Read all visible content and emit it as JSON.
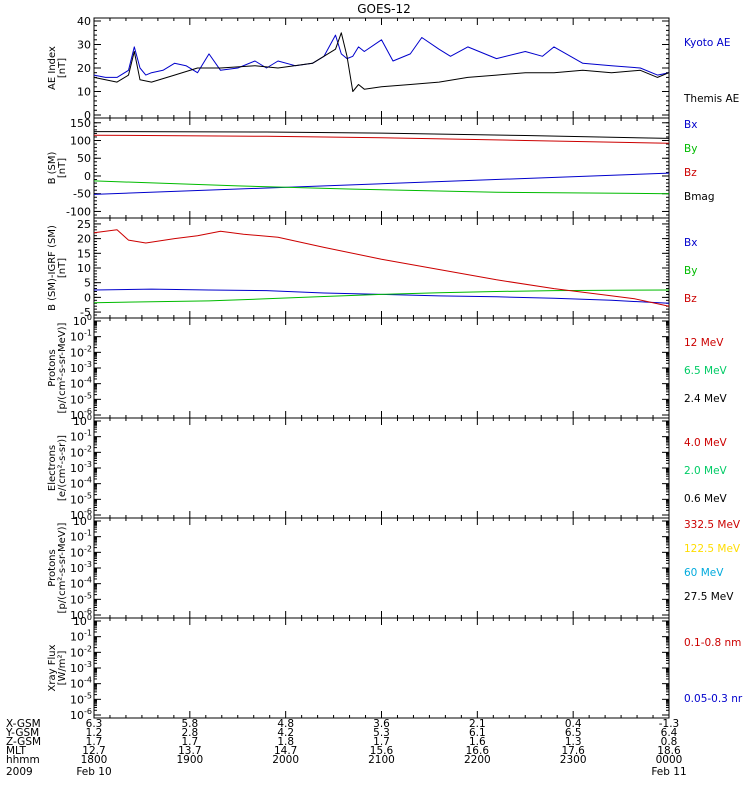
{
  "title": "GOES-12",
  "chart_data": [
    {
      "type": "line",
      "panel": 1,
      "ylabel_lines": [
        "AE Index",
        "[nT]"
      ],
      "ylim": [
        0,
        40
      ],
      "yticks": [
        0,
        10,
        20,
        30,
        40
      ],
      "scale": "linear",
      "series": [
        {
          "name": "Kyoto AE",
          "color": "#0000cc",
          "label_pos": 0,
          "x": [
            0,
            0.02,
            0.04,
            0.06,
            0.07,
            0.08,
            0.09,
            0.1,
            0.12,
            0.14,
            0.16,
            0.18,
            0.2,
            0.22,
            0.25,
            0.28,
            0.3,
            0.32,
            0.35,
            0.38,
            0.4,
            0.42,
            0.43,
            0.44,
            0.45,
            0.46,
            0.47,
            0.5,
            0.52,
            0.55,
            0.57,
            0.6,
            0.62,
            0.65,
            0.7,
            0.75,
            0.78,
            0.8,
            0.85,
            0.9,
            0.95,
            0.98,
            1.0
          ],
          "y": [
            17,
            16,
            16,
            19,
            29,
            20,
            17,
            18,
            19,
            22,
            21,
            18,
            26,
            19,
            20,
            23,
            20,
            23,
            21,
            22,
            25,
            34,
            26,
            24,
            25,
            29,
            27,
            32,
            23,
            26,
            33,
            28,
            25,
            29,
            24,
            27,
            25,
            29,
            22,
            21,
            20,
            17,
            18
          ]
        },
        {
          "name": "Themis AE",
          "color": "#000000",
          "label_pos": 2,
          "x": [
            0,
            0.02,
            0.04,
            0.06,
            0.07,
            0.08,
            0.1,
            0.14,
            0.18,
            0.22,
            0.28,
            0.32,
            0.38,
            0.42,
            0.43,
            0.44,
            0.45,
            0.46,
            0.47,
            0.5,
            0.55,
            0.6,
            0.65,
            0.7,
            0.75,
            0.8,
            0.85,
            0.9,
            0.95,
            0.98,
            1.0
          ],
          "y": [
            16,
            15,
            14,
            17,
            27,
            15,
            14,
            17,
            20,
            20,
            21,
            20,
            22,
            28,
            35,
            25,
            10,
            13,
            11,
            12,
            13,
            14,
            16,
            17,
            18,
            18,
            19,
            18,
            19,
            16,
            18
          ]
        }
      ]
    },
    {
      "type": "line",
      "panel": 2,
      "ylabel_lines": [
        "B (SM)",
        "[nT]"
      ],
      "ylim": [
        -110,
        155
      ],
      "yticks": [
        -100,
        -50,
        0,
        50,
        100,
        150
      ],
      "scale": "linear",
      "series": [
        {
          "name": "Bx",
          "color": "#0000cc",
          "label_pos": 0,
          "x": [
            0,
            1.0
          ],
          "y": [
            -52,
            8
          ]
        },
        {
          "name": "By",
          "color": "#00bb00",
          "label_pos": 1,
          "x": [
            0,
            0.25,
            0.45,
            0.7,
            1.0
          ],
          "y": [
            -14,
            -28,
            -37,
            -46,
            -50
          ]
        },
        {
          "name": "Bz",
          "color": "#cc0000",
          "label_pos": 2,
          "x": [
            0,
            0.3,
            0.5,
            0.75,
            1.0
          ],
          "y": [
            115,
            112,
            108,
            100,
            92
          ]
        },
        {
          "name": "Bmag",
          "color": "#000000",
          "label_pos": 3,
          "x": [
            0,
            0.3,
            0.5,
            0.75,
            1.0
          ],
          "y": [
            125,
            124,
            121,
            114,
            106
          ]
        }
      ]
    },
    {
      "type": "line",
      "panel": 3,
      "ylabel_lines": [
        "B (SM)-IGRF (SM)",
        "[nT]"
      ],
      "ylim": [
        -6,
        26
      ],
      "yticks": [
        -5,
        0,
        5,
        10,
        15,
        20,
        25
      ],
      "scale": "linear",
      "series": [
        {
          "name": "Bx",
          "color": "#0000cc",
          "label_pos": 0,
          "x": [
            0,
            0.1,
            0.2,
            0.3,
            0.4,
            0.5,
            0.6,
            0.7,
            0.8,
            0.9,
            1.0
          ],
          "y": [
            2.5,
            2.8,
            2.5,
            2.3,
            1.5,
            1.0,
            0.5,
            0.2,
            -0.3,
            -1,
            -2
          ]
        },
        {
          "name": "By",
          "color": "#00bb00",
          "label_pos": 1,
          "x": [
            0,
            0.1,
            0.2,
            0.3,
            0.4,
            0.5,
            0.6,
            0.7,
            0.8,
            0.9,
            1.0
          ],
          "y": [
            -1.8,
            -1.5,
            -1.2,
            -0.5,
            0.3,
            1.0,
            1.6,
            2.0,
            2.3,
            2.4,
            2.5
          ]
        },
        {
          "name": "Bz",
          "color": "#cc0000",
          "label_pos": 2,
          "x": [
            0,
            0.04,
            0.06,
            0.09,
            0.14,
            0.18,
            0.22,
            0.26,
            0.32,
            0.4,
            0.5,
            0.6,
            0.7,
            0.8,
            0.88,
            0.94,
            1.0
          ],
          "y": [
            22,
            23,
            19.5,
            18.5,
            20,
            21,
            22.5,
            21.5,
            20.5,
            17,
            13,
            9.5,
            6,
            3,
            1,
            -0.5,
            -3
          ]
        }
      ]
    },
    {
      "type": "line",
      "panel": 4,
      "ylabel_lines": [
        "Protons",
        "[p/(cm²-s-sr-MeV)]"
      ],
      "ylim": [
        -6,
        0
      ],
      "scale": "log",
      "series": [
        {
          "name": "12 MeV",
          "color": "#cc0000",
          "label_pos": 0,
          "x": [],
          "y": []
        },
        {
          "name": "6.5 MeV",
          "color": "#00cc66",
          "label_pos": 1,
          "x": [],
          "y": []
        },
        {
          "name": "2.4 MeV",
          "color": "#000000",
          "label_pos": 2,
          "x": [],
          "y": []
        }
      ]
    },
    {
      "type": "line",
      "panel": 5,
      "ylabel_lines": [
        "Electrons",
        "[e/(cm²-s-sr)]"
      ],
      "ylim": [
        -6,
        0
      ],
      "scale": "log",
      "series": [
        {
          "name": "4.0 MeV",
          "color": "#cc0000",
          "label_pos": 0,
          "x": [],
          "y": []
        },
        {
          "name": "2.0 MeV",
          "color": "#00cc66",
          "label_pos": 1,
          "x": [],
          "y": []
        },
        {
          "name": "0.6 MeV",
          "color": "#000000",
          "label_pos": 2,
          "x": [],
          "y": []
        }
      ]
    },
    {
      "type": "line",
      "panel": 6,
      "ylabel_lines": [
        "Protons",
        "[p/(cm²-s-sr-MeV)]"
      ],
      "ylim": [
        -6,
        0
      ],
      "scale": "log",
      "series": [
        {
          "name": "332.5 MeV",
          "color": "#cc0000",
          "label_pos": 0,
          "x": [],
          "y": []
        },
        {
          "name": "122.5 MeV",
          "color": "#ffdd00",
          "label_pos": 1,
          "x": [],
          "y": []
        },
        {
          "name": "60 MeV",
          "color": "#00aadd",
          "label_pos": 2,
          "x": [],
          "y": []
        },
        {
          "name": "27.5 MeV",
          "color": "#000000",
          "label_pos": 3,
          "x": [],
          "y": []
        }
      ]
    },
    {
      "type": "line",
      "panel": 7,
      "ylabel_lines": [
        "Xray Flux",
        "[W/m²]"
      ],
      "ylim": [
        -6,
        0
      ],
      "scale": "log",
      "series": [
        {
          "name": "0.1-0.8 nm",
          "color": "#cc0000",
          "label_pos": 0,
          "x": [],
          "y": []
        },
        {
          "name": "0.05-0.3 nr",
          "color": "#0000cc",
          "label_pos": 2,
          "x": [],
          "y": []
        }
      ]
    }
  ],
  "ephemeris": {
    "rows": [
      {
        "label": "X-GSM",
        "values": [
          "6.3",
          "5.8",
          "4.8",
          "3.6",
          "2.1",
          "0.4",
          "-1.3"
        ]
      },
      {
        "label": "Y-GSM",
        "values": [
          "1.2",
          "2.8",
          "4.2",
          "5.3",
          "6.1",
          "6.5",
          "6.4"
        ]
      },
      {
        "label": "Z-GSM",
        "values": [
          "1.7",
          "1.7",
          "1.8",
          "1.7",
          "1.6",
          "1.3",
          "0.8"
        ]
      },
      {
        "label": "MLT",
        "values": [
          "12.7",
          "13.7",
          "14.7",
          "15.6",
          "16.6",
          "17.6",
          "18.6"
        ]
      },
      {
        "label": "hhmm",
        "values": [
          "1800",
          "1900",
          "2000",
          "2100",
          "2200",
          "2300",
          "0000"
        ]
      }
    ],
    "year": "2009",
    "date_start": "Feb 10",
    "date_end": "Feb 11"
  }
}
